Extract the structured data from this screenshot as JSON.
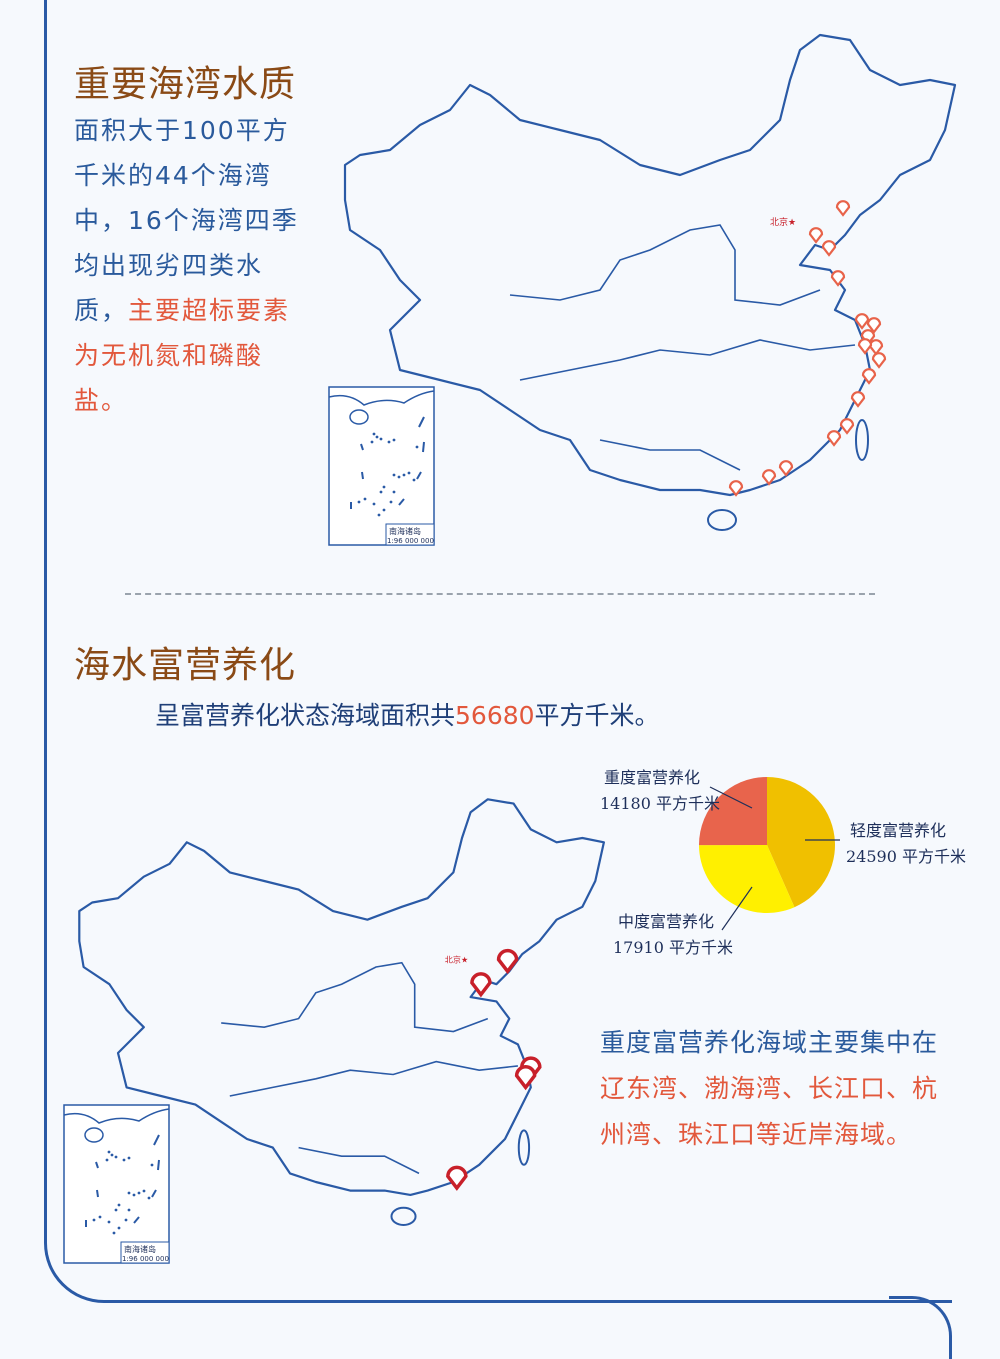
{
  "section1": {
    "title": "重要海湾水质",
    "para_blue": "面积大于100平方千米的44个海湾中，16个海湾四季均出现劣四类水质，",
    "para_red": "主要超标要素为无机氮和磷酸盐。",
    "map": {
      "capital_label": "北京★",
      "inset_title": "南海诸岛",
      "inset_scale": "1:96 000 000",
      "pin_color": "#e8634a"
    }
  },
  "section2": {
    "title": "海水富营养化",
    "summary_prefix": "呈富营养化状态海域面积共",
    "summary_value": "56680",
    "summary_suffix": "平方千米。",
    "map": {
      "capital_label": "北京★",
      "inset_title": "南海诸岛",
      "inset_scale": "1:96 000 000",
      "pin_color": "#c8202a"
    },
    "note_blue": "重度富营养化海域主要集中在",
    "note_red": "辽东湾、渤海湾、长江口、杭州湾、珠江口等近岸海域。"
  },
  "chart_data": {
    "type": "pie",
    "unit": "平方千米",
    "slices": [
      {
        "name": "轻度富营养化",
        "value": 24590,
        "label_value": "24590  平方千米",
        "color": "#f0c000"
      },
      {
        "name": "中度富营养化",
        "value": 17910,
        "label_value": "17910  平方千米",
        "color": "#fff000"
      },
      {
        "name": "重度富营养化",
        "value": 14180,
        "label_value": "14180 平方千米",
        "color": "#e8644c"
      }
    ]
  },
  "colors": {
    "title": "#8a4a16",
    "text": "#2a5a9c",
    "highlight": "#e2583c",
    "border": "#2a5aa6"
  }
}
